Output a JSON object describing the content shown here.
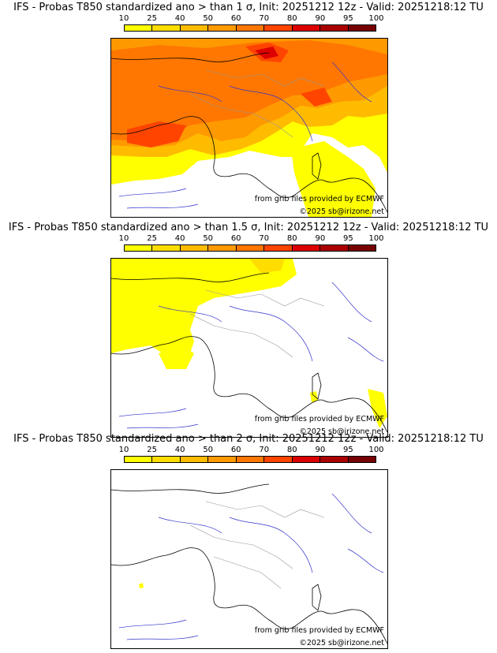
{
  "legend": {
    "ticks": [
      "10",
      "25",
      "40",
      "50",
      "60",
      "70",
      "80",
      "90",
      "95",
      "100"
    ],
    "colors": [
      "#ffff00",
      "#ffdd00",
      "#ffbb00",
      "#ff9900",
      "#ff7700",
      "#ff4400",
      "#dd0000",
      "#aa0000",
      "#770000"
    ]
  },
  "panels": [
    {
      "title": "IFS - Probas T850  standardized ano > than 1 σ, Init: 20251212 12z - Valid: 20251218:12 TU",
      "source_credit": "from grib files provided by ECMWF",
      "copyright": "©2025 sb@irizone.net"
    },
    {
      "title": "IFS - Probas T850  standardized ano > than 1.5 σ, Init: 20251212 12z - Valid: 20251218:12 TU",
      "source_credit": "from grib files provided by ECMWF",
      "copyright": "©2025 sb@irizone.net"
    },
    {
      "title": "IFS - Probas T850  standardized ano > than 2 σ, Init: 20251212 12z - Valid: 20251218:12 TU",
      "source_credit": "from grib files provided by ECMWF",
      "copyright": "©2025 sb@irizone.net"
    }
  ]
}
